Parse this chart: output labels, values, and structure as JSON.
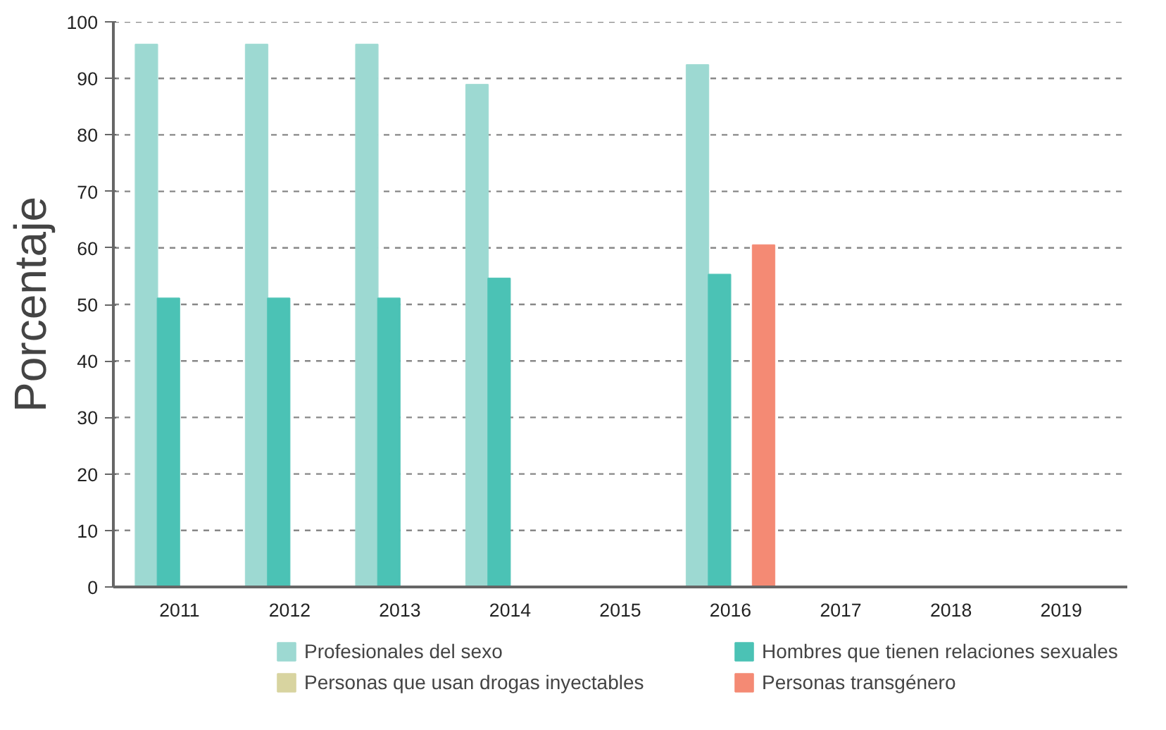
{
  "chart_data": {
    "type": "bar",
    "ylabel": "Porcentaje",
    "categories": [
      "2011",
      "2012",
      "2013",
      "2014",
      "2015",
      "2016",
      "2017",
      "2018",
      "2019"
    ],
    "series": [
      {
        "name": "Profesionales del sexo",
        "color": "#9dd9d2",
        "values": [
          96,
          96,
          96,
          88.9,
          null,
          92.4,
          null,
          null,
          null
        ]
      },
      {
        "name": "Hombres que tienen relaciones sexuales",
        "color": "#4bc2b5",
        "values": [
          51.1,
          51.1,
          51.1,
          54.6,
          null,
          55.3,
          null,
          null,
          null
        ]
      },
      {
        "name": "Personas que usan drogas inyectables",
        "color": "#d8d4a0",
        "values": [
          null,
          null,
          null,
          null,
          null,
          null,
          null,
          null,
          null
        ]
      },
      {
        "name": "Personas transgénero",
        "color": "#f48a74",
        "values": [
          null,
          null,
          null,
          null,
          null,
          60.5,
          null,
          null,
          null
        ]
      }
    ],
    "ylim": [
      0,
      100
    ],
    "yticks": [
      0,
      10,
      20,
      30,
      40,
      50,
      60,
      70,
      80,
      90,
      100
    ],
    "grid": "y",
    "legend": "bottom"
  }
}
